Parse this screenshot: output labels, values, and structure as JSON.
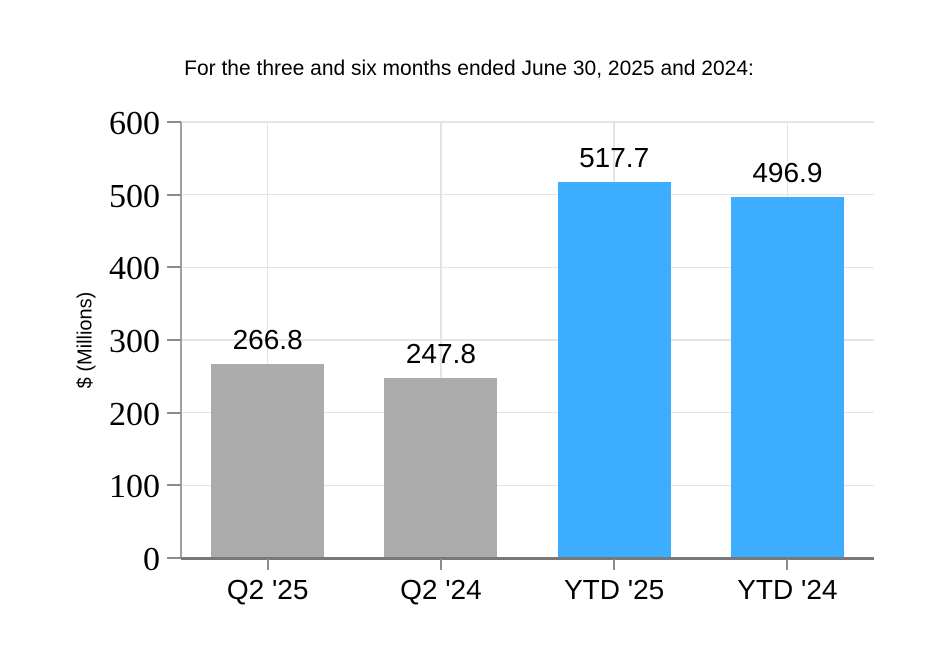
{
  "chart_data": {
    "type": "bar",
    "title": "For the three and six months ended June 30, 2025 and 2024:",
    "categories": [
      "Q2 '25",
      "Q2 '24",
      "YTD '25",
      "YTD '24"
    ],
    "values": [
      266.8,
      247.8,
      517.7,
      496.9
    ],
    "value_labels": [
      "266.8",
      "247.8",
      "517.7",
      "496.9"
    ],
    "bar_colors": [
      "#ababab",
      "#ababab",
      "#3daeff",
      "#3daeff"
    ],
    "xlabel": "",
    "ylabel": "$ (Millions)",
    "ylim": [
      0,
      600
    ],
    "yticks": [
      0,
      100,
      200,
      300,
      400,
      500,
      600
    ],
    "grid": true,
    "legend_position": "none",
    "colors": {
      "gray_bar": "#ababab",
      "blue_bar": "#3daeff",
      "gridline": "#e4e4e4",
      "y_axis_line": "#a0a0a0",
      "x_axis_line": "#787878",
      "tick_mark": "#8c8c8c",
      "text": "#000000",
      "background": "#ffffff"
    }
  }
}
